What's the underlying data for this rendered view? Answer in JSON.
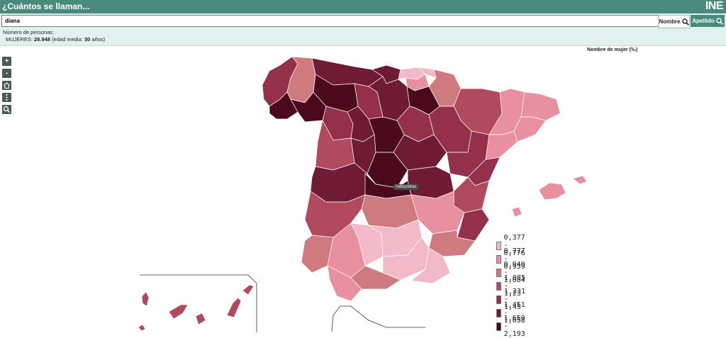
{
  "app": {
    "title": "¿Cuántos se llaman...",
    "logo": "INE"
  },
  "search": {
    "value": "diana",
    "nombre_label": "Nombre",
    "apellido_label": "Apellido"
  },
  "info": {
    "count_label": "Número de personas:",
    "gender_label": "MUJERES:",
    "count": "28.948",
    "avg_age_prefix": "(edad media:",
    "avg_age": "30",
    "avg_age_suffix": "años)"
  },
  "map": {
    "title": "Nombre de mujer (‰)",
    "tooltip": "Indiscretos",
    "controls": [
      "+",
      "-",
      "home",
      "menu",
      "search"
    ]
  },
  "legend": [
    {
      "label": "0,377 - 0,776",
      "color": "#f2b9c6"
    },
    {
      "label": "0,777 - 0,939",
      "color": "#e8909f"
    },
    {
      "label": "0,940 - 1,084",
      "color": "#cf7a7f"
    },
    {
      "label": "1,085 - 1,23",
      "color": "#b14a5c"
    },
    {
      "label": "1,231 - 1,45",
      "color": "#94304a"
    },
    {
      "label": "1,451 - 1,658",
      "color": "#6e1b33"
    },
    {
      "label": "1,659 - 2,193",
      "color": "#4a0a1c"
    }
  ]
}
